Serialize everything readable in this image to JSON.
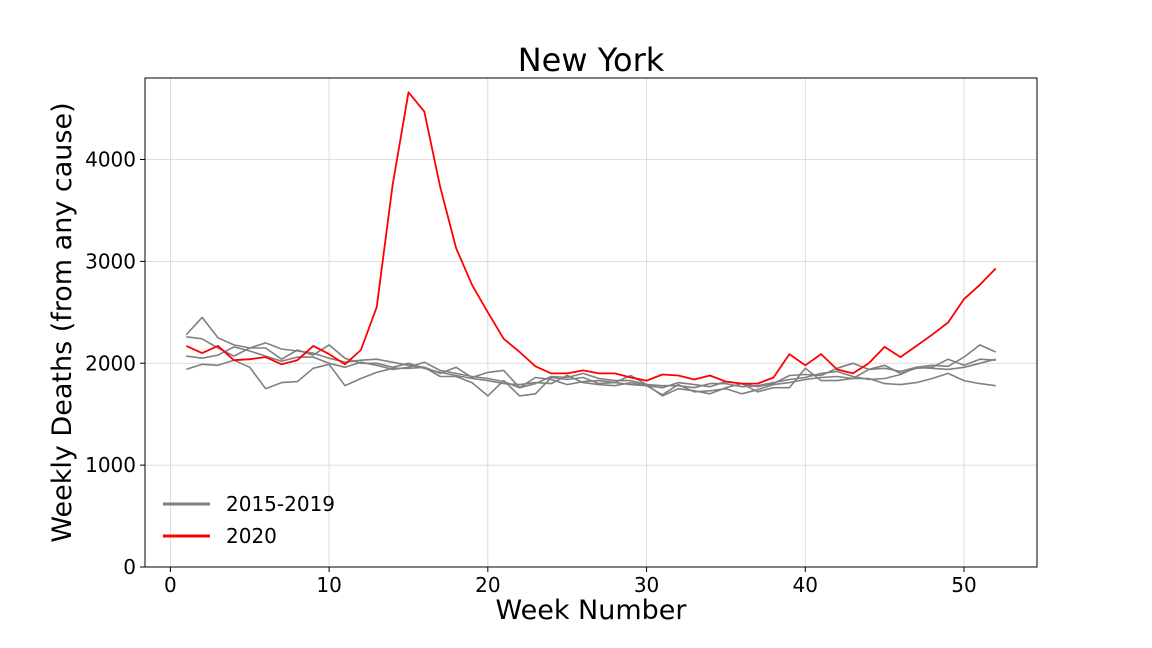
{
  "chart_data": {
    "type": "line",
    "title": "New York",
    "xlabel": "Week Number",
    "ylabel": "Weekly Deaths (from any cause)",
    "xlim": [
      -1.6,
      54.6
    ],
    "ylim": [
      0,
      4800
    ],
    "xticks": [
      0,
      10,
      20,
      30,
      40,
      50
    ],
    "yticks": [
      0,
      1000,
      2000,
      3000,
      4000
    ],
    "grid": true,
    "legend_position": "lower-left",
    "legend": [
      {
        "label": "2015-2019",
        "color": "#808080"
      },
      {
        "label": "2020",
        "color": "#ff0000"
      }
    ],
    "x": [
      1,
      2,
      3,
      4,
      5,
      6,
      7,
      8,
      9,
      10,
      11,
      12,
      13,
      14,
      15,
      16,
      17,
      18,
      19,
      20,
      21,
      22,
      23,
      24,
      25,
      26,
      27,
      28,
      29,
      30,
      31,
      32,
      33,
      34,
      35,
      36,
      37,
      38,
      39,
      40,
      41,
      42,
      43,
      44,
      45,
      46,
      47,
      48,
      49,
      50,
      51,
      52
    ],
    "series": [
      {
        "group": "2015-2019",
        "color": "#808080",
        "values": [
          2280,
          2450,
          2250,
          2180,
          2150,
          2200,
          2140,
          2120,
          2100,
          2050,
          2010,
          2030,
          2040,
          2010,
          1980,
          1960,
          1900,
          1960,
          1860,
          1910,
          1930,
          1760,
          1860,
          1840,
          1790,
          1820,
          1830,
          1810,
          1790,
          1780,
          1760,
          1810,
          1790,
          1770,
          1820,
          1800,
          1770,
          1800,
          1880,
          1890,
          1880,
          1950,
          2000,
          1940,
          1980,
          1900,
          1950,
          1960,
          2040,
          1980,
          2040,
          2030
        ]
      },
      {
        "group": "2015-2019",
        "color": "#808080",
        "values": [
          2260,
          2240,
          2150,
          2070,
          2150,
          2150,
          2040,
          2130,
          2080,
          2180,
          2050,
          2000,
          2000,
          1960,
          2000,
          1950,
          1910,
          1880,
          1850,
          1830,
          1800,
          1790,
          1810,
          1800,
          1880,
          1810,
          1790,
          1780,
          1810,
          1780,
          1690,
          1790,
          1720,
          1730,
          1750,
          1700,
          1740,
          1790,
          1810,
          1840,
          1860,
          1870,
          1850,
          1940,
          1950,
          1920,
          1960,
          1980,
          1970,
          2060,
          2180,
          2110
        ]
      },
      {
        "group": "2015-2019",
        "color": "#808080",
        "values": [
          2070,
          2050,
          2080,
          2160,
          2120,
          2070,
          2020,
          2060,
          2060,
          2000,
          1960,
          2010,
          1980,
          1940,
          1960,
          2010,
          1930,
          1900,
          1870,
          1850,
          1820,
          1760,
          1800,
          1870,
          1860,
          1900,
          1850,
          1830,
          1830,
          1790,
          1780,
          1780,
          1760,
          1800,
          1800,
          1770,
          1780,
          1810,
          1840,
          1860,
          1900,
          1920,
          1870,
          1840,
          1850,
          1890,
          1960,
          1950,
          1940,
          1960,
          2000,
          2040
        ]
      },
      {
        "group": "2015-2019",
        "color": "#808080",
        "values": [
          1940,
          1990,
          1980,
          2030,
          1960,
          1750,
          1810,
          1820,
          1950,
          1990,
          1780,
          1850,
          1910,
          1950,
          1950,
          1960,
          1870,
          1870,
          1810,
          1680,
          1830,
          1680,
          1700,
          1860,
          1840,
          1860,
          1800,
          1810,
          1880,
          1790,
          1680,
          1750,
          1730,
          1700,
          1760,
          1800,
          1720,
          1760,
          1760,
          1950,
          1830,
          1830,
          1850,
          1850,
          1800,
          1790,
          1810,
          1850,
          1900,
          1830,
          1800,
          1780
        ]
      },
      {
        "group": "2020",
        "color": "#ff0000",
        "values": [
          2170,
          2100,
          2170,
          2030,
          2040,
          2060,
          1990,
          2030,
          2170,
          2090,
          1990,
          2130,
          2550,
          3750,
          4660,
          4470,
          3730,
          3130,
          2770,
          2500,
          2240,
          2110,
          1970,
          1900,
          1900,
          1930,
          1900,
          1900,
          1860,
          1830,
          1890,
          1880,
          1840,
          1880,
          1820,
          1800,
          1800,
          1860,
          2090,
          1980,
          2090,
          1940,
          1900,
          2000,
          2160,
          2060,
          2170,
          2280,
          2400,
          2630,
          2770,
          2930
        ]
      }
    ]
  }
}
